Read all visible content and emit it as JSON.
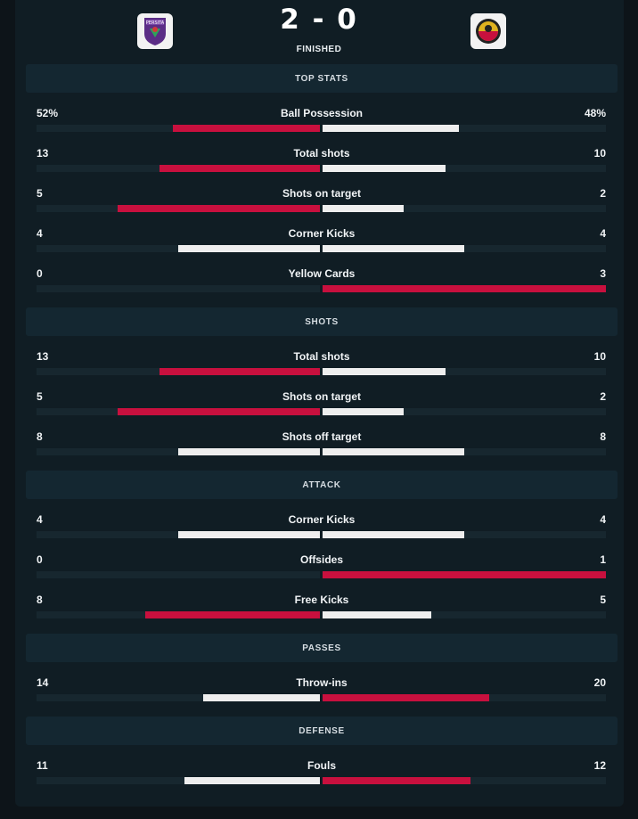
{
  "match": {
    "home_score": "2",
    "separator": "-",
    "away_score": "0",
    "status": "FINISHED",
    "home_logo": "persita-crest-icon",
    "away_logo": "semen-padang-crest-icon"
  },
  "colors": {
    "leader": "#c8103e",
    "trailer": "#eeeeee",
    "track": "#17272f"
  },
  "sections": [
    {
      "title": "TOP STATS",
      "stats": [
        {
          "name": "Ball Possession",
          "home": "52%",
          "away": "48%",
          "home_share": 0.52,
          "away_share": 0.48,
          "leader": "home"
        },
        {
          "name": "Total shots",
          "home": "13",
          "away": "10",
          "home_share": 0.565,
          "away_share": 0.435,
          "leader": "home"
        },
        {
          "name": "Shots on target",
          "home": "5",
          "away": "2",
          "home_share": 0.714,
          "away_share": 0.286,
          "leader": "home"
        },
        {
          "name": "Corner Kicks",
          "home": "4",
          "away": "4",
          "home_share": 0.5,
          "away_share": 0.5,
          "leader": "none"
        },
        {
          "name": "Yellow Cards",
          "home": "0",
          "away": "3",
          "home_share": 0,
          "away_share": 1,
          "leader": "away"
        }
      ]
    },
    {
      "title": "SHOTS",
      "stats": [
        {
          "name": "Total shots",
          "home": "13",
          "away": "10",
          "home_share": 0.565,
          "away_share": 0.435,
          "leader": "home"
        },
        {
          "name": "Shots on target",
          "home": "5",
          "away": "2",
          "home_share": 0.714,
          "away_share": 0.286,
          "leader": "home"
        },
        {
          "name": "Shots off target",
          "home": "8",
          "away": "8",
          "home_share": 0.5,
          "away_share": 0.5,
          "leader": "none"
        }
      ]
    },
    {
      "title": "ATTACK",
      "stats": [
        {
          "name": "Corner Kicks",
          "home": "4",
          "away": "4",
          "home_share": 0.5,
          "away_share": 0.5,
          "leader": "none"
        },
        {
          "name": "Offsides",
          "home": "0",
          "away": "1",
          "home_share": 0,
          "away_share": 1,
          "leader": "away"
        },
        {
          "name": "Free Kicks",
          "home": "8",
          "away": "5",
          "home_share": 0.615,
          "away_share": 0.385,
          "leader": "home"
        }
      ]
    },
    {
      "title": "PASSES",
      "stats": [
        {
          "name": "Throw-ins",
          "home": "14",
          "away": "20",
          "home_share": 0.412,
          "away_share": 0.588,
          "leader": "away"
        }
      ]
    },
    {
      "title": "DEFENSE",
      "stats": [
        {
          "name": "Fouls",
          "home": "11",
          "away": "12",
          "home_share": 0.478,
          "away_share": 0.522,
          "leader": "away"
        }
      ]
    }
  ]
}
